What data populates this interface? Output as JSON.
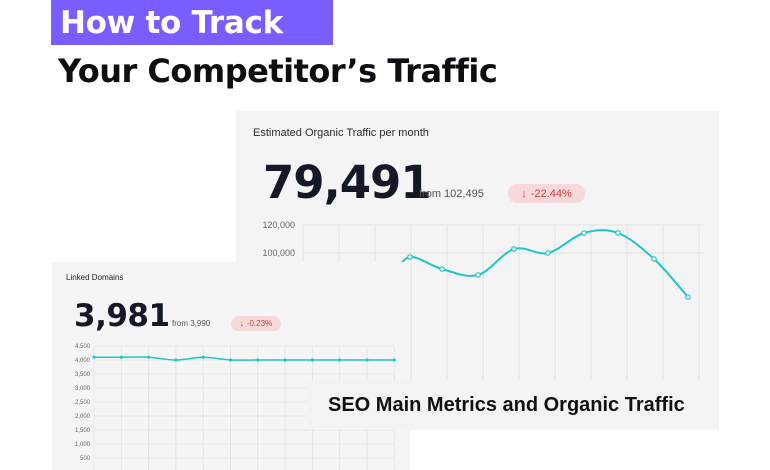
{
  "headline": {
    "tag": "How to Track",
    "main": "Your Competitor’s Traffic"
  },
  "traffic_card": {
    "title": "Estimated Organic Traffic per month",
    "value": "79,491",
    "from": "from 102,495",
    "change": "-22.44%",
    "change_icon": "arrow-down-icon",
    "accent_color": "#1ec6c4",
    "negative_color": "#d33a3a"
  },
  "domains_card": {
    "title": "Linked Domains",
    "value": "3,981",
    "from": "from 3,990",
    "change": "-0.23%",
    "change_icon": "arrow-down-icon"
  },
  "caption": "SEO Main Metrics and Organic Traffic",
  "chart_data": [
    {
      "type": "line",
      "title": "Estimated Organic Traffic per month",
      "y_ticks": [
        "120,000",
        "100,000"
      ],
      "series": [
        {
          "values": [
            95000,
            104000,
            98000,
            95000,
            108000,
            106000,
            116000,
            116000,
            103000,
            84000
          ]
        }
      ],
      "grid": true
    },
    {
      "type": "line",
      "title": "Linked Domains",
      "y_ticks": [
        "4,500",
        "4,000",
        "3,500",
        "3,000",
        "2,500",
        "2,000",
        "1,500",
        "1,000",
        "500"
      ],
      "ylim": [
        0,
        4500
      ],
      "series": [
        {
          "values": [
            4100,
            4100,
            4100,
            4000,
            4100,
            4000,
            4000,
            4000,
            4000,
            4000,
            4000,
            4000
          ]
        }
      ],
      "grid": true
    }
  ]
}
